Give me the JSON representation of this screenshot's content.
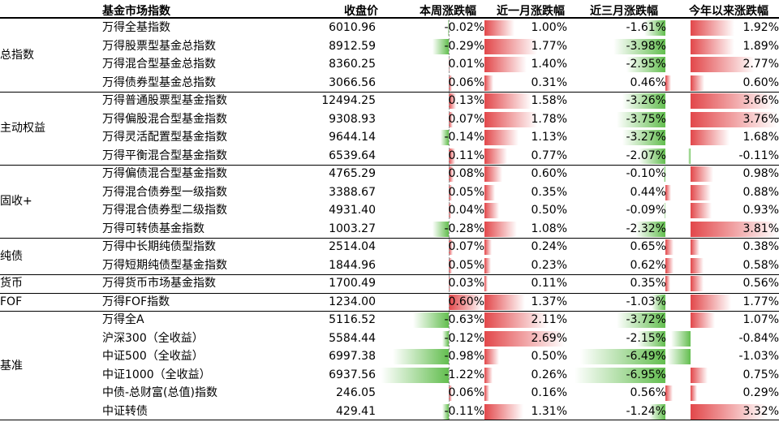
{
  "header": {
    "col_name": "基金市场指数",
    "col_close": "收盘价",
    "col_week": "本周涨跌幅",
    "col_month": "近一月涨跌幅",
    "col_3month": "近三月涨跌幅",
    "col_ytd": "今年以来涨跌幅"
  },
  "colors": {
    "positive": "#e2474a",
    "negative": "#63be4f"
  },
  "groups": [
    {
      "label": "总指数"
    },
    {
      "label": "主动权益"
    },
    {
      "label": "固收+"
    },
    {
      "label": "纯债"
    },
    {
      "label": "货币"
    },
    {
      "label": "FOF"
    },
    {
      "label": "基准"
    }
  ],
  "rows": [
    {
      "group": 0,
      "name": "万得全基指数",
      "close": "6010.96",
      "week": -0.02,
      "month": 1.0,
      "m3": -1.61,
      "ytd": 1.92
    },
    {
      "group": 0,
      "name": "万得股票型基金总指数",
      "close": "8912.59",
      "week": -0.29,
      "month": 1.77,
      "m3": -3.98,
      "ytd": 1.89
    },
    {
      "group": 0,
      "name": "万得混合型基金总指数",
      "close": "8360.25",
      "week": 0.01,
      "month": 1.4,
      "m3": -2.95,
      "ytd": 2.77
    },
    {
      "group": 0,
      "name": "万得债券型基金总指数",
      "close": "3066.56",
      "week": 0.06,
      "month": 0.31,
      "m3": 0.46,
      "ytd": 0.6
    },
    {
      "group": 1,
      "name": "万得普通股票型基金指数",
      "close": "12494.25",
      "week": 0.13,
      "month": 1.58,
      "m3": -3.26,
      "ytd": 3.66
    },
    {
      "group": 1,
      "name": "万得偏股混合型基金指数",
      "close": "9308.93",
      "week": 0.07,
      "month": 1.78,
      "m3": -3.75,
      "ytd": 3.76
    },
    {
      "group": 1,
      "name": "万得灵活配置型基金指数",
      "close": "9644.14",
      "week": -0.14,
      "month": 1.13,
      "m3": -3.27,
      "ytd": 1.68
    },
    {
      "group": 1,
      "name": "万得平衡混合型基金指数",
      "close": "6539.64",
      "week": 0.11,
      "month": 0.77,
      "m3": -2.07,
      "ytd": -0.11
    },
    {
      "group": 2,
      "name": "万得偏债混合型基金指数",
      "close": "4765.29",
      "week": 0.08,
      "month": 0.6,
      "m3": -0.1,
      "ytd": 0.98
    },
    {
      "group": 2,
      "name": "万得混合债券型一级指数",
      "close": "3388.67",
      "week": 0.05,
      "month": 0.35,
      "m3": 0.44,
      "ytd": 0.88
    },
    {
      "group": 2,
      "name": "万得混合债券型二级指数",
      "close": "4931.40",
      "week": 0.04,
      "month": 0.5,
      "m3": -0.09,
      "ytd": 0.93
    },
    {
      "group": 2,
      "name": "万得可转债基金指数",
      "close": "1003.27",
      "week": -0.28,
      "month": 1.08,
      "m3": -2.32,
      "ytd": 3.81
    },
    {
      "group": 3,
      "name": "万得中长期纯债型指数",
      "close": "2514.04",
      "week": 0.07,
      "month": 0.24,
      "m3": 0.65,
      "ytd": 0.38
    },
    {
      "group": 3,
      "name": "万得短期纯债型基金指数",
      "close": "1844.96",
      "week": 0.05,
      "month": 0.23,
      "m3": 0.62,
      "ytd": 0.58
    },
    {
      "group": 4,
      "name": "万得货币市场基金指数",
      "close": "1700.49",
      "week": 0.03,
      "month": 0.11,
      "m3": 0.35,
      "ytd": 0.56
    },
    {
      "group": 5,
      "name": "万得FOF指数",
      "close": "1234.00",
      "week": 0.6,
      "month": 1.37,
      "m3": -1.03,
      "ytd": 1.77
    },
    {
      "group": 6,
      "name": "万得全A",
      "close": "5116.52",
      "week": -0.63,
      "month": 2.11,
      "m3": -3.72,
      "ytd": 1.07
    },
    {
      "group": 6,
      "name": "沪深300（全收益）",
      "close": "5584.44",
      "week": -0.12,
      "month": 2.69,
      "m3": -2.15,
      "ytd": -0.84
    },
    {
      "group": 6,
      "name": "中证500（全收益）",
      "close": "6997.38",
      "week": -0.98,
      "month": 0.5,
      "m3": -6.49,
      "ytd": -1.03
    },
    {
      "group": 6,
      "name": "中证1000（全收益）",
      "close": "6937.56",
      "week": -1.22,
      "month": 0.26,
      "m3": -6.95,
      "ytd": 0.75
    },
    {
      "group": 6,
      "name": "中债-总财富(总值)指数",
      "close": "246.05",
      "week": 0.06,
      "month": 0.16,
      "m3": 0.56,
      "ytd": 0.29
    },
    {
      "group": 6,
      "name": "中证转债",
      "close": "429.41",
      "week": -0.11,
      "month": 1.31,
      "m3": -1.24,
      "ytd": 3.32
    }
  ]
}
